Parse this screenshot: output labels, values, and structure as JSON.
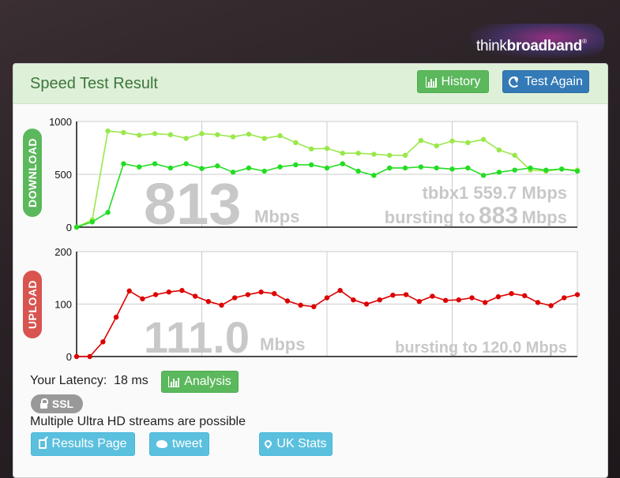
{
  "logo": {
    "text_light": "think",
    "text_bold": "broadband",
    "reg": "®"
  },
  "panel": {
    "title": "Speed Test Result"
  },
  "buttons": {
    "history": "History",
    "test_again": "Test Again",
    "analysis": "Analysis",
    "results_page": "Results Page",
    "tweet": "tweet",
    "uk_stats": "UK Stats"
  },
  "download": {
    "label": "DOWNLOAD",
    "big_value": "813",
    "unit": "Mbps",
    "line1": "tbbx1 559.7 Mbps",
    "line2_prefix": "bursting to",
    "line2_value": "883",
    "line2_unit": "Mbps"
  },
  "upload": {
    "label": "UPLOAD",
    "big_value": "111.0",
    "unit": "Mbps",
    "line1_prefix": "bursting to",
    "line1_value": "120.0",
    "line1_unit": "Mbps"
  },
  "latency": {
    "label": "Your Latency:",
    "value": "18 ms"
  },
  "ssl": {
    "label": "SSL"
  },
  "streams_text": "Multiple Ultra HD streams are possible",
  "colors": {
    "download_burst": "#99e84a",
    "download_main": "#22dd22",
    "upload": "#dd0000",
    "green_btn": "#5cb85c",
    "blue_btn": "#337ab7",
    "info_btn": "#5bc0de",
    "upload_badge": "#d9534f"
  },
  "chart_data": [
    {
      "type": "line",
      "ylabel": "DOWNLOAD",
      "ylim": [
        0,
        1000
      ],
      "yticks": [
        "0",
        "500",
        "1000"
      ],
      "series": [
        {
          "values": [
            0,
            70,
            910,
            895,
            870,
            885,
            875,
            840,
            885,
            875,
            855,
            880,
            840,
            865,
            800,
            740,
            745,
            700,
            700,
            690,
            680,
            680,
            820,
            770,
            815,
            800,
            830,
            730,
            680,
            540,
            530,
            550,
            540
          ]
        },
        {
          "values": [
            0,
            50,
            140,
            600,
            570,
            600,
            560,
            600,
            555,
            580,
            520,
            560,
            530,
            570,
            590,
            590,
            560,
            600,
            530,
            490,
            560,
            560,
            570,
            560,
            550,
            560,
            490,
            520,
            540,
            560,
            540,
            550,
            530
          ]
        }
      ]
    },
    {
      "type": "line",
      "ylabel": "UPLOAD",
      "ylim": [
        0,
        200
      ],
      "yticks": [
        "0",
        "100",
        "200"
      ],
      "series": [
        {
          "values": [
            0,
            0,
            28,
            75,
            125,
            110,
            118,
            123,
            126,
            115,
            105,
            98,
            112,
            118,
            123,
            120,
            106,
            98,
            95,
            112,
            126,
            108,
            100,
            108,
            117,
            118,
            105,
            115,
            107,
            108,
            112,
            103,
            114,
            120,
            116,
            103,
            97,
            112,
            118
          ]
        }
      ]
    }
  ]
}
